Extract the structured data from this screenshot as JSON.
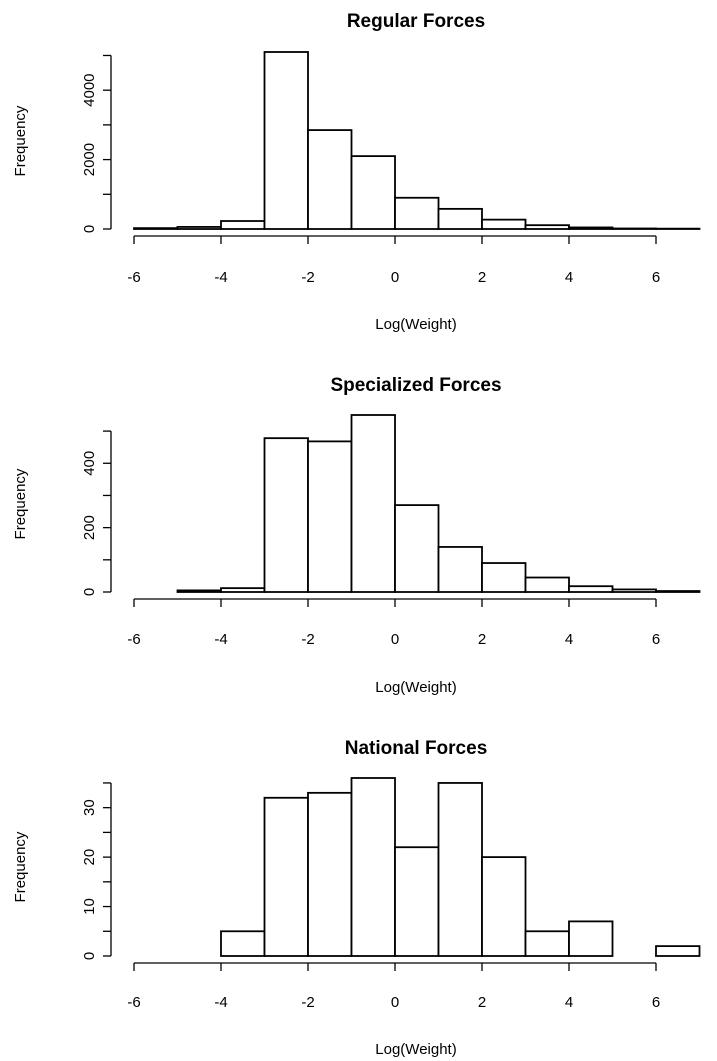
{
  "chart_data": [
    {
      "type": "bar",
      "title": "Regular Forces",
      "xlabel": "Log(Weight)",
      "ylabel": "Frequency",
      "bin_edges": [
        -6,
        -5,
        -4,
        -3,
        -2,
        -1,
        0,
        1,
        2,
        3,
        4,
        5,
        6,
        7
      ],
      "values": [
        25,
        60,
        230,
        5100,
        2850,
        2100,
        900,
        580,
        270,
        110,
        45,
        15,
        10
      ],
      "xticks": [
        -6,
        -4,
        -2,
        0,
        2,
        4,
        6
      ],
      "yticks": [
        0,
        2000,
        4000
      ],
      "ylim": [
        0,
        5100
      ],
      "xlim": [
        -6,
        7
      ],
      "grid": false
    },
    {
      "type": "bar",
      "title": "Specialized Forces",
      "xlabel": "Log(Weight)",
      "ylabel": "Frequency",
      "bin_edges": [
        -5,
        -4,
        -3,
        -2,
        -1,
        0,
        1,
        2,
        3,
        4,
        5,
        6,
        7
      ],
      "values": [
        5,
        12,
        478,
        468,
        550,
        270,
        140,
        90,
        45,
        18,
        8,
        3
      ],
      "xticks": [
        -6,
        -4,
        -2,
        0,
        2,
        4,
        6
      ],
      "yticks": [
        0,
        200,
        400
      ],
      "ylim": [
        0,
        550
      ],
      "xlim": [
        -6,
        7
      ],
      "grid": false
    },
    {
      "type": "bar",
      "title": "National Forces",
      "xlabel": "Log(Weight)",
      "ylabel": "Frequency",
      "bin_edges": [
        -4,
        -3,
        -2,
        -1,
        0,
        1,
        2,
        3,
        4,
        5,
        6,
        7
      ],
      "values": [
        5,
        32,
        33,
        36,
        22,
        35,
        20,
        5,
        7,
        0,
        2
      ],
      "xticks": [
        -6,
        -4,
        -2,
        0,
        2,
        4,
        6
      ],
      "yticks": [
        0,
        10,
        20,
        30
      ],
      "ylim": [
        0,
        36
      ],
      "xlim": [
        -6,
        7
      ],
      "grid": false
    }
  ]
}
